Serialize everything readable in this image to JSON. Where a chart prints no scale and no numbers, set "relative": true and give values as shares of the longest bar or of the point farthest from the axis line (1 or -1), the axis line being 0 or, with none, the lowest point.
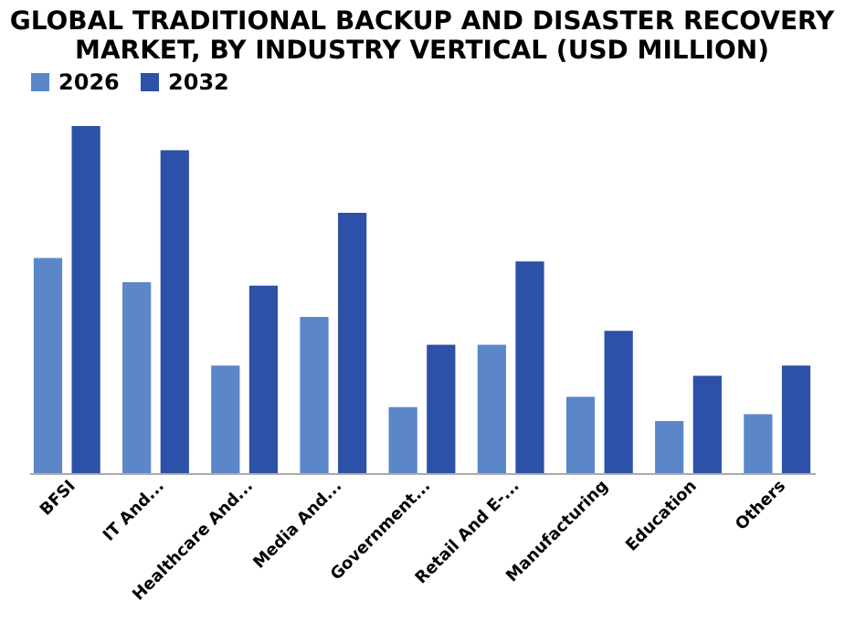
{
  "chart_data": {
    "type": "bar",
    "title": "GLOBAL TRADITIONAL BACKUP AND DISASTER RECOVERY MARKET, BY INDUSTRY VERTICAL (USD MILLION)",
    "categories": [
      "BFSI",
      "IT And...",
      "Healthcare And...",
      "Media And...",
      "Government...",
      "Retail And E-...",
      "Manufacturing",
      "Education",
      "Others"
    ],
    "relative": true,
    "legend": "top",
    "grid": false,
    "series": [
      {
        "name": "2026",
        "color": "#5b87c9",
        "values": [
          0.62,
          0.55,
          0.31,
          0.45,
          0.19,
          0.37,
          0.22,
          0.15,
          0.17
        ]
      },
      {
        "name": "2032",
        "color": "#2d50a8",
        "values": [
          1,
          0.93,
          0.54,
          0.75,
          0.37,
          0.61,
          0.41,
          0.28,
          0.31
        ]
      }
    ]
  }
}
